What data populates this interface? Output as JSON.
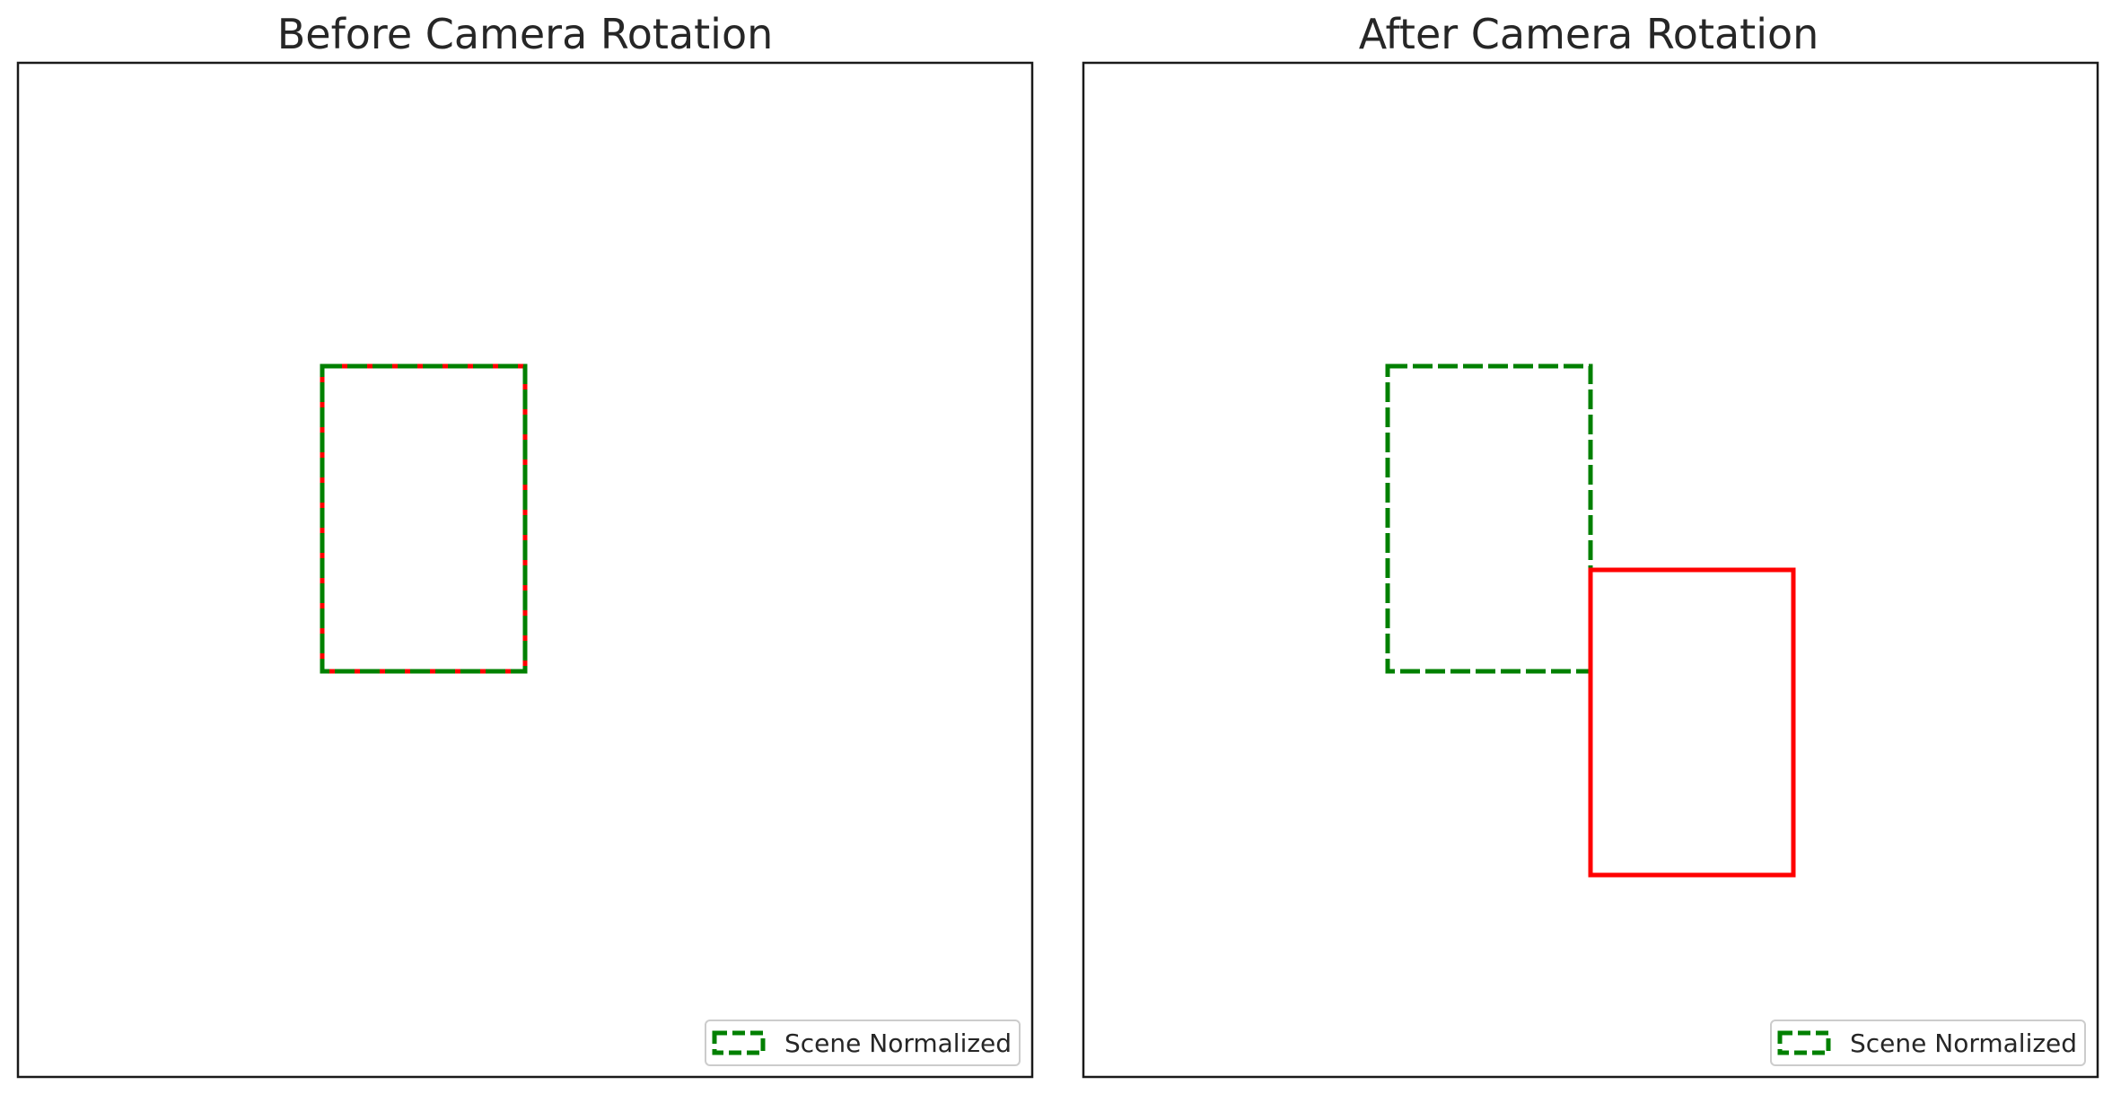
{
  "panels": [
    {
      "title": "Before Camera Rotation",
      "legend_label": "Scene Normalized"
    },
    {
      "title": "After Camera Rotation",
      "legend_label": "Scene Normalized"
    }
  ],
  "colors": {
    "scene_normalized": "#008000",
    "camera_view": "#ff0000"
  }
}
